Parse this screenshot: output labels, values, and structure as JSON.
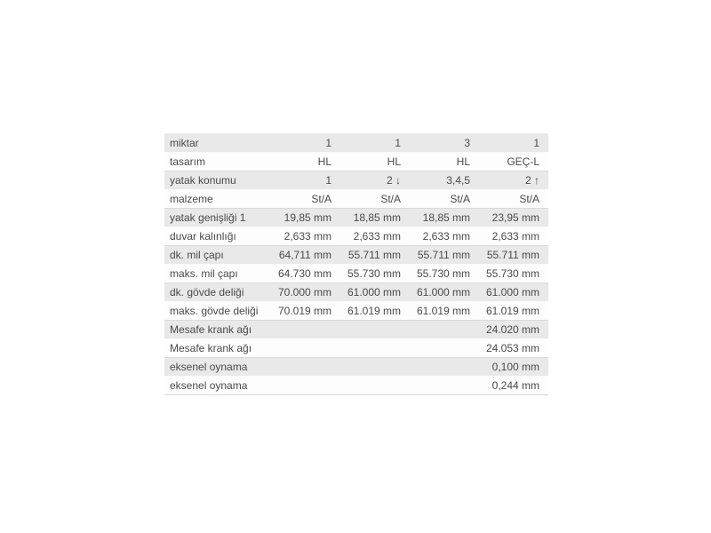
{
  "table": {
    "columns_count": 4,
    "rows": [
      {
        "label": "miktar",
        "values": [
          "1",
          "1",
          "3",
          "1"
        ]
      },
      {
        "label": "tasarım",
        "values": [
          "HL",
          "HL",
          "HL",
          "GEÇ-L"
        ]
      },
      {
        "label": "yatak konumu",
        "values": [
          "1",
          "2 ↓",
          "3,4,5",
          "2 ↑"
        ]
      },
      {
        "label": "malzeme",
        "values": [
          "St/A",
          "St/A",
          "St/A",
          "St/A"
        ]
      },
      {
        "label": "yatak genişliği 1",
        "values": [
          "19,85 mm",
          "18,85 mm",
          "18,85 mm",
          "23,95 mm"
        ]
      },
      {
        "label": "duvar kalınlığı",
        "values": [
          "2,633 mm",
          "2,633 mm",
          "2,633 mm",
          "2,633 mm"
        ]
      },
      {
        "label": "dk. mil çapı",
        "values": [
          "64,711 mm",
          "55.711 mm",
          "55.711 mm",
          "55.711 mm"
        ]
      },
      {
        "label": "maks. mil çapı",
        "values": [
          "64.730 mm",
          "55.730 mm",
          "55.730 mm",
          "55.730 mm"
        ]
      },
      {
        "label": "dk. gövde deliği",
        "values": [
          "70.000 mm",
          "61.000 mm",
          "61.000 mm",
          "61.000 mm"
        ]
      },
      {
        "label": "maks. gövde deliği",
        "values": [
          "70.019 mm",
          "61.019 mm",
          "61.019 mm",
          "61.019 mm"
        ]
      },
      {
        "label": "Mesafe krank ağı",
        "values": [
          "",
          "",
          "",
          "24.020 mm"
        ]
      },
      {
        "label": "Mesafe krank ağı",
        "values": [
          "",
          "",
          "",
          "24.053 mm"
        ]
      },
      {
        "label": "eksenel oynama",
        "values": [
          "",
          "",
          "",
          "0,100 mm"
        ]
      },
      {
        "label": "eksenel oynama",
        "values": [
          "",
          "",
          "",
          "0,244 mm"
        ]
      }
    ],
    "colors": {
      "stripe_bg": "#e9e9e9",
      "plain_bg": "#fdfdfd",
      "text": "#4a4a4a",
      "divider": "#dadada",
      "canvas_bg": "#ffffff"
    }
  }
}
